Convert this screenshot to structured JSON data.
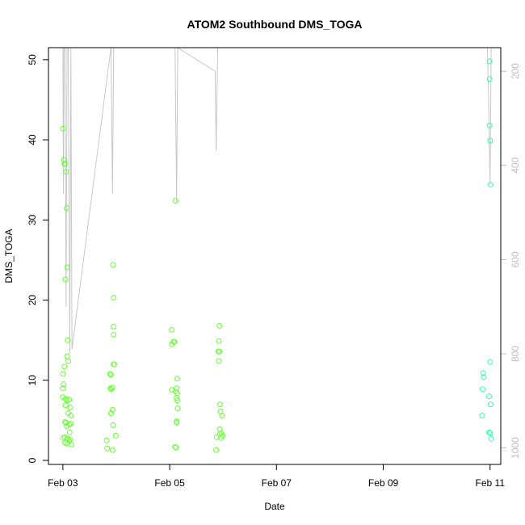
{
  "chart_data": {
    "type": "scatter",
    "title": "ATOM2 Southbound DMS_TOGA",
    "xlabel": "Date",
    "ylabel": "DMS_TOGA",
    "x_range_days": [
      -0.27,
      8.2
    ],
    "x_ticks": [
      {
        "label": "Feb 03",
        "day": 0
      },
      {
        "label": "Feb 05",
        "day": 2
      },
      {
        "label": "Feb 07",
        "day": 4
      },
      {
        "label": "Feb 09",
        "day": 6
      },
      {
        "label": "Feb 11",
        "day": 8
      }
    ],
    "ylim": [
      -0.5,
      51.5
    ],
    "y_ticks": [
      0,
      10,
      20,
      30,
      40,
      50
    ],
    "y2_range": [
      1035,
      150
    ],
    "y2_ticks": [
      200,
      400,
      600,
      800,
      1000
    ],
    "secondary_line_color": "#c8c8c8",
    "secondary_series": [
      [
        0.0,
        150
      ],
      [
        0.01,
        460
      ],
      [
        0.02,
        150
      ],
      [
        0.04,
        150
      ],
      [
        0.06,
        700
      ],
      [
        0.08,
        150
      ],
      [
        0.1,
        150
      ],
      [
        0.13,
        800
      ],
      [
        0.15,
        150
      ],
      [
        0.17,
        790
      ],
      [
        0.9,
        150
      ],
      [
        0.93,
        460
      ],
      [
        0.95,
        150
      ],
      [
        2.1,
        150
      ],
      [
        2.13,
        480
      ],
      [
        2.15,
        150
      ],
      [
        2.85,
        200
      ],
      [
        2.87,
        370
      ],
      [
        2.9,
        150
      ],
      [
        7.95,
        150
      ],
      [
        7.97,
        250
      ],
      [
        8.0,
        440
      ],
      [
        8.02,
        150
      ]
    ],
    "series": [
      {
        "color": "#66ff33",
        "points": [
          [
            0.0,
            41.4
          ],
          [
            0.02,
            37.5
          ],
          [
            0.03,
            37.0
          ],
          [
            0.04,
            37.0
          ],
          [
            0.06,
            36.0
          ],
          [
            0.07,
            31.5
          ],
          [
            0.08,
            24.1
          ],
          [
            0.05,
            22.6
          ],
          [
            0.09,
            15.0
          ],
          [
            0.08,
            13.0
          ],
          [
            0.1,
            12.4
          ],
          [
            0.03,
            11.7
          ],
          [
            0.0,
            10.8
          ],
          [
            0.01,
            9.5
          ],
          [
            0.0,
            9.0
          ],
          [
            0.0,
            7.9
          ],
          [
            0.05,
            7.7
          ],
          [
            0.08,
            7.5
          ],
          [
            0.12,
            7.6
          ],
          [
            0.05,
            6.9
          ],
          [
            0.14,
            6.6
          ],
          [
            0.1,
            5.9
          ],
          [
            0.15,
            5.6
          ],
          [
            0.04,
            4.8
          ],
          [
            0.06,
            4.7
          ],
          [
            0.12,
            4.5
          ],
          [
            0.15,
            4.6
          ],
          [
            0.07,
            4.3
          ],
          [
            0.13,
            3.5
          ],
          [
            0.04,
            2.9
          ],
          [
            0.0,
            2.8
          ],
          [
            0.09,
            2.7
          ],
          [
            0.14,
            2.6
          ],
          [
            0.04,
            2.2
          ],
          [
            0.08,
            2.1
          ],
          [
            0.12,
            2.4
          ],
          [
            0.16,
            2.0
          ],
          [
            0.94,
            24.4
          ],
          [
            0.95,
            20.3
          ],
          [
            0.95,
            16.7
          ],
          [
            0.95,
            15.7
          ],
          [
            0.95,
            12.0
          ],
          [
            0.96,
            12.0
          ],
          [
            0.88,
            10.8
          ],
          [
            0.9,
            10.7
          ],
          [
            0.89,
            9.0
          ],
          [
            0.93,
            9.1
          ],
          [
            0.9,
            8.9
          ],
          [
            0.93,
            6.3
          ],
          [
            0.9,
            5.9
          ],
          [
            0.94,
            4.4
          ],
          [
            0.99,
            3.1
          ],
          [
            0.82,
            2.5
          ],
          [
            0.83,
            1.5
          ],
          [
            0.93,
            1.3
          ],
          [
            2.11,
            32.4
          ],
          [
            2.04,
            16.3
          ],
          [
            2.07,
            14.8
          ],
          [
            2.09,
            14.8
          ],
          [
            2.04,
            14.5
          ],
          [
            2.14,
            10.2
          ],
          [
            2.13,
            9.0
          ],
          [
            2.04,
            8.8
          ],
          [
            2.11,
            8.6
          ],
          [
            2.14,
            8.4
          ],
          [
            2.13,
            7.8
          ],
          [
            2.14,
            7.5
          ],
          [
            2.15,
            6.5
          ],
          [
            2.13,
            4.9
          ],
          [
            2.13,
            4.7
          ],
          [
            2.1,
            1.7
          ],
          [
            2.12,
            1.6
          ],
          [
            2.93,
            16.8
          ],
          [
            2.92,
            14.9
          ],
          [
            2.91,
            13.6
          ],
          [
            2.93,
            13.6
          ],
          [
            2.92,
            12.4
          ],
          [
            2.94,
            7.0
          ],
          [
            2.95,
            6.1
          ],
          [
            2.98,
            5.6
          ],
          [
            2.94,
            3.9
          ],
          [
            2.97,
            3.4
          ],
          [
            2.88,
            2.9
          ],
          [
            2.94,
            3.3
          ],
          [
            2.96,
            2.8
          ],
          [
            2.99,
            3.1
          ],
          [
            2.87,
            1.3
          ]
        ]
      },
      {
        "color": "#33ffaa",
        "points": [
          [
            7.99,
            49.8
          ],
          [
            7.99,
            47.6
          ],
          [
            7.99,
            41.8
          ],
          [
            8.0,
            39.9
          ],
          [
            8.01,
            34.4
          ],
          [
            8.0,
            12.3
          ],
          [
            7.87,
            10.9
          ],
          [
            7.88,
            10.4
          ],
          [
            7.86,
            8.9
          ],
          [
            7.98,
            8.0
          ],
          [
            8.01,
            7.0
          ],
          [
            7.85,
            5.6
          ],
          [
            7.98,
            3.5
          ],
          [
            8.0,
            3.4
          ],
          [
            8.02,
            2.7
          ]
        ]
      }
    ]
  }
}
